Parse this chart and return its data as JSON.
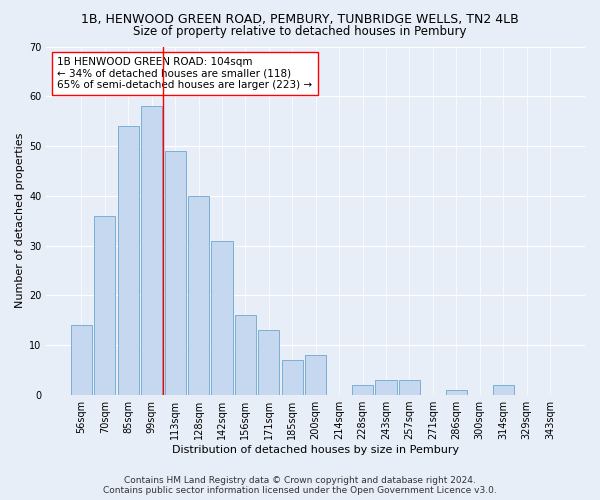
{
  "title": "1B, HENWOOD GREEN ROAD, PEMBURY, TUNBRIDGE WELLS, TN2 4LB",
  "subtitle": "Size of property relative to detached houses in Pembury",
  "xlabel": "Distribution of detached houses by size in Pembury",
  "ylabel": "Number of detached properties",
  "bar_labels": [
    "56sqm",
    "70sqm",
    "85sqm",
    "99sqm",
    "113sqm",
    "128sqm",
    "142sqm",
    "156sqm",
    "171sqm",
    "185sqm",
    "200sqm",
    "214sqm",
    "228sqm",
    "243sqm",
    "257sqm",
    "271sqm",
    "286sqm",
    "300sqm",
    "314sqm",
    "329sqm",
    "343sqm"
  ],
  "bar_values": [
    14,
    36,
    54,
    58,
    49,
    40,
    31,
    16,
    13,
    7,
    8,
    0,
    2,
    3,
    3,
    0,
    1,
    0,
    2,
    0,
    0
  ],
  "bar_color": "#c5d8f0",
  "bar_edge_color": "#7aafd4",
  "ylim": [
    0,
    70
  ],
  "yticks": [
    0,
    10,
    20,
    30,
    40,
    50,
    60,
    70
  ],
  "property_line_bin": 3.5,
  "annotation_text": "1B HENWOOD GREEN ROAD: 104sqm\n← 34% of detached houses are smaller (118)\n65% of semi-detached houses are larger (223) →",
  "footer_line1": "Contains HM Land Registry data © Crown copyright and database right 2024.",
  "footer_line2": "Contains public sector information licensed under the Open Government Licence v3.0.",
  "bg_color": "#e8eef8",
  "plot_bg_color": "#e8eef8",
  "grid_color": "#ffffff",
  "title_fontsize": 9,
  "subtitle_fontsize": 8.5,
  "axis_label_fontsize": 8,
  "tick_fontsize": 7,
  "annotation_fontsize": 7.5,
  "footer_fontsize": 6.5
}
